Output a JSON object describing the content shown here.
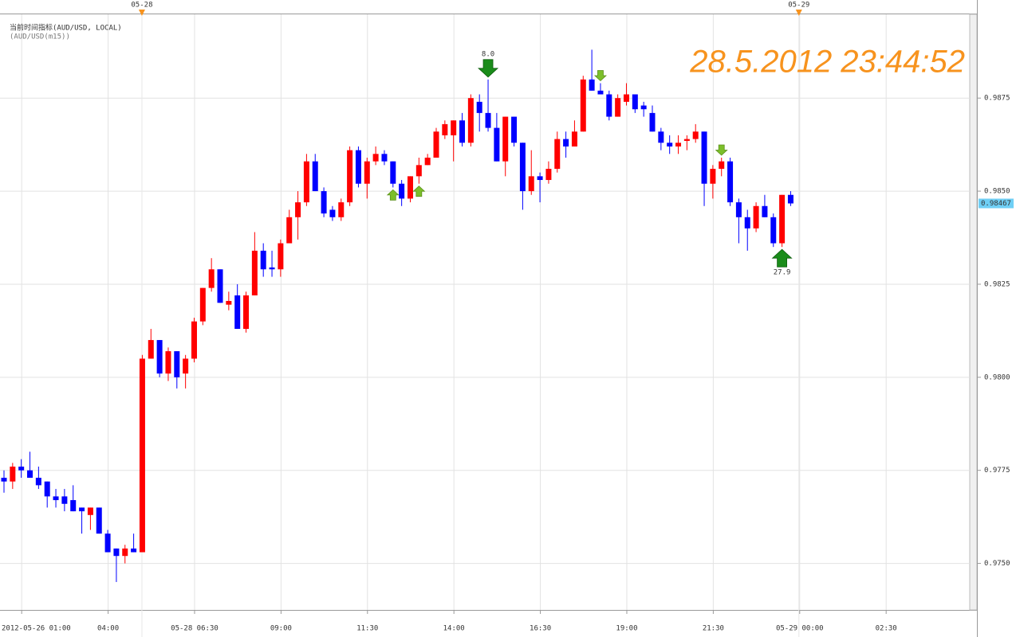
{
  "chart_data": {
    "type": "candlestick",
    "title": "当前时间指标(AUD/USD, LOCAL)",
    "subtitle": "(AUD/USD(m15))",
    "timestamp": "28.5.2012 23:44:52",
    "up_color": "#ff0000",
    "down_color": "#0000ff",
    "grid": true,
    "ylim": [
      0.97375,
      0.98975
    ],
    "yticks": [
      {
        "value": 0.975,
        "label": "0.9750"
      },
      0.9775,
      {
        "value": 0.98,
        "label": "0.9800"
      },
      0.9825,
      {
        "value": 0.985,
        "label": "0.9850"
      },
      0.9875
    ],
    "xticks": [
      "2012-05-26 01:00",
      "04:00",
      "05-28 06:30",
      "09:00",
      "11:30",
      "14:00",
      "16:30",
      "19:00",
      "21:30",
      "05-29 00:00",
      "02:30"
    ],
    "day_markers": [
      "05-28",
      "05-29"
    ],
    "last_price": 0.98467,
    "open": [
      0.9773,
      0.9772,
      0.9776,
      0.9775,
      0.9773,
      0.9772,
      0.9768,
      0.9768,
      0.9767,
      0.9765,
      0.9763,
      0.9765,
      0.9758,
      0.9754,
      0.9752,
      0.9754,
      0.9753,
      0.9805,
      0.981,
      0.9801,
      0.9807,
      0.9801,
      0.9805,
      0.9815,
      0.9824,
      0.9829,
      0.98195,
      0.9822,
      0.9813,
      0.9822,
      0.9834,
      0.98295,
      0.9829,
      0.9836,
      0.9843,
      0.9847,
      0.9858,
      0.985,
      0.9845,
      0.9843,
      0.9847,
      0.9861,
      0.9852,
      0.9858,
      0.986,
      0.9858,
      0.9852,
      0.9848,
      0.9854,
      0.9857,
      0.9859,
      0.9865,
      0.9865,
      0.9869,
      0.9863,
      0.9874,
      0.9871,
      0.9867,
      0.9858,
      0.987,
      0.9863,
      0.985,
      0.9854,
      0.9853,
      0.9856,
      0.9864,
      0.9862,
      0.9866,
      0.988,
      0.9877,
      0.9876,
      0.987,
      0.9874,
      0.9876,
      0.9873,
      0.9871,
      0.9866,
      0.9863,
      0.9862,
      0.98635,
      0.9864,
      0.9866,
      0.9852,
      0.9856,
      0.9858,
      0.9847,
      0.9843,
      0.984,
      0.9846,
      0.9843,
      0.9836,
      0.9849
    ],
    "high": [
      0.9775,
      0.9777,
      0.9778,
      0.978,
      0.9776,
      0.9772,
      0.977,
      0.977,
      0.9771,
      0.9765,
      0.9765,
      0.9765,
      0.9759,
      0.9754,
      0.9755,
      0.9758,
      0.9806,
      0.9813,
      0.981,
      0.9808,
      0.9807,
      0.9806,
      0.9816,
      0.9824,
      0.9832,
      0.9829,
      0.9823,
      0.9825,
      0.9823,
      0.9839,
      0.9836,
      0.9834,
      0.9837,
      0.9845,
      0.985,
      0.986,
      0.986,
      0.9851,
      0.9846,
      0.9848,
      0.9862,
      0.9862,
      0.9859,
      0.9862,
      0.9861,
      0.9858,
      0.9853,
      0.9854,
      0.9859,
      0.986,
      0.9867,
      0.9869,
      0.9869,
      0.9871,
      0.9876,
      0.9876,
      0.988,
      0.9871,
      0.987,
      0.987,
      0.9863,
      0.9861,
      0.9855,
      0.9858,
      0.9866,
      0.9866,
      0.9869,
      0.9881,
      0.9888,
      0.9879,
      0.9877,
      0.9876,
      0.9879,
      0.9876,
      0.9874,
      0.9873,
      0.9867,
      0.9865,
      0.9865,
      0.9865,
      0.9868,
      0.9866,
      0.9857,
      0.9859,
      0.9859,
      0.9848,
      0.9845,
      0.9847,
      0.9849,
      0.9844,
      0.9849,
      0.985
    ],
    "low": [
      0.9769,
      0.977,
      0.9773,
      0.9773,
      0.977,
      0.9765,
      0.9765,
      0.9764,
      0.9764,
      0.9758,
      0.9759,
      0.9758,
      0.9753,
      0.9745,
      0.975,
      0.9753,
      0.9753,
      0.9805,
      0.98,
      0.9799,
      0.9797,
      0.9797,
      0.9804,
      0.9814,
      0.9823,
      0.982,
      0.9818,
      0.9813,
      0.9812,
      0.9822,
      0.9827,
      0.9827,
      0.9827,
      0.9836,
      0.9837,
      0.9846,
      0.985,
      0.9843,
      0.9842,
      0.9842,
      0.9846,
      0.9851,
      0.9848,
      0.9857,
      0.9857,
      0.9851,
      0.9846,
      0.9847,
      0.9852,
      0.9857,
      0.9859,
      0.9864,
      0.9858,
      0.9862,
      0.9862,
      0.9866,
      0.9866,
      0.9858,
      0.9854,
      0.9862,
      0.9845,
      0.9849,
      0.9847,
      0.9852,
      0.9855,
      0.9859,
      0.9862,
      0.9866,
      0.9877,
      0.9876,
      0.9869,
      0.987,
      0.9873,
      0.9871,
      0.987,
      0.9866,
      0.9861,
      0.986,
      0.986,
      0.9861,
      0.9863,
      0.9846,
      0.9848,
      0.9854,
      0.9846,
      0.9836,
      0.9834,
      0.9839,
      0.9843,
      0.9835,
      0.9835,
      0.9846
    ],
    "close": [
      0.9772,
      0.9776,
      0.9775,
      0.9773,
      0.9771,
      0.9768,
      0.9767,
      0.9766,
      0.9764,
      0.9764,
      0.9765,
      0.9758,
      0.9753,
      0.9752,
      0.9754,
      0.9753,
      0.9805,
      0.981,
      0.9801,
      0.9807,
      0.98,
      0.9805,
      0.9815,
      0.9824,
      0.9829,
      0.982,
      0.98205,
      0.9813,
      0.9822,
      0.9834,
      0.9829,
      0.9829,
      0.9836,
      0.9843,
      0.9847,
      0.9858,
      0.985,
      0.9844,
      0.9843,
      0.9847,
      0.9861,
      0.9852,
      0.9858,
      0.986,
      0.9858,
      0.9852,
      0.9848,
      0.9854,
      0.9857,
      0.9859,
      0.9866,
      0.9868,
      0.9869,
      0.9863,
      0.9875,
      0.9871,
      0.9867,
      0.9858,
      0.987,
      0.9863,
      0.985,
      0.9854,
      0.9853,
      0.9856,
      0.9864,
      0.9862,
      0.9866,
      0.988,
      0.9877,
      0.9876,
      0.987,
      0.9875,
      0.9876,
      0.9872,
      0.9872,
      0.9866,
      0.9863,
      0.9862,
      0.9863,
      0.9864,
      0.9866,
      0.9852,
      0.9856,
      0.9858,
      0.9847,
      0.9843,
      0.984,
      0.9846,
      0.9843,
      0.9836,
      0.9849,
      0.98467
    ],
    "signals": [
      {
        "index": 56,
        "dir": "down",
        "size": "large",
        "label": "8.0"
      },
      {
        "index": 45,
        "dir": "up",
        "size": "small"
      },
      {
        "index": 48,
        "dir": "up",
        "size": "small"
      },
      {
        "index": 69,
        "dir": "down",
        "size": "small"
      },
      {
        "index": 83,
        "dir": "down",
        "size": "small"
      },
      {
        "index": 90,
        "dir": "up",
        "size": "large",
        "label": "27.9"
      }
    ]
  }
}
